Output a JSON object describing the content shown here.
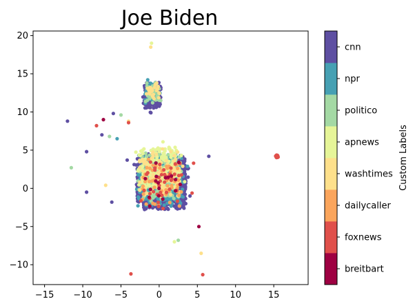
{
  "chart_data": {
    "type": "scatter",
    "title": "Joe Biden",
    "xlabel": "",
    "ylabel": "",
    "xlim": [
      -16.5,
      19.5
    ],
    "ylim": [
      -12.6,
      20.6
    ],
    "xticks": [
      -15,
      -10,
      -5,
      0,
      5,
      10,
      15
    ],
    "yticks": [
      -10,
      -5,
      0,
      5,
      10,
      15,
      20
    ],
    "grid": false,
    "colorbar": {
      "label": "Custom Labels",
      "categories": [
        "breitbart",
        "foxnews",
        "dailycaller",
        "washtimes",
        "apnews",
        "politico",
        "npr",
        "cnn"
      ],
      "colors": [
        "#9e0142",
        "#e0504b",
        "#fba55c",
        "#fee08b",
        "#e6f598",
        "#a4d9a4",
        "#46a0b3",
        "#5e4fa2"
      ]
    },
    "series": [
      {
        "category": "cnn",
        "clusters": [
          {
            "center": [
              0.3,
              0.8
            ],
            "spread": [
              3.4,
              3.6
            ],
            "count": 1500
          },
          {
            "center": [
              -0.9,
              12.2
            ],
            "spread": [
              1.2,
              1.7
            ],
            "count": 260
          }
        ],
        "outliers": [
          [
            -12,
            8.8
          ],
          [
            -9.5,
            4.8
          ],
          [
            -7.5,
            7
          ],
          [
            -6,
            9.8
          ],
          [
            6.5,
            4.2
          ],
          [
            -9.5,
            -0.5
          ],
          [
            -6.2,
            -1.8
          ]
        ]
      },
      {
        "category": "npr",
        "clusters": [
          {
            "center": [
              0.2,
              1.0
            ],
            "spread": [
              3.2,
              3.4
            ],
            "count": 420
          },
          {
            "center": [
              -0.9,
              12.5
            ],
            "spread": [
              1.0,
              1.4
            ],
            "count": 70
          }
        ],
        "outliers": [
          [
            -5.5,
            6.5
          ],
          [
            -1.5,
            14.2
          ]
        ]
      },
      {
        "category": "politico",
        "clusters": [
          {
            "center": [
              0.0,
              1.6
            ],
            "spread": [
              3.0,
              3.2
            ],
            "count": 300
          },
          {
            "center": [
              -0.8,
              12.6
            ],
            "spread": [
              1.1,
              1.5
            ],
            "count": 45
          }
        ],
        "outliers": [
          [
            -11.5,
            2.7
          ],
          [
            -6.5,
            6.8
          ],
          [
            2.5,
            -6.8
          ],
          [
            -5,
            9.6
          ]
        ]
      },
      {
        "category": "apnews",
        "clusters": [
          {
            "center": [
              0.0,
              2.6
            ],
            "spread": [
              3.0,
              2.8
            ],
            "count": 180
          }
        ],
        "outliers": [
          [
            -1.0,
            19
          ],
          [
            2,
            -7
          ]
        ]
      },
      {
        "category": "washtimes",
        "clusters": [
          {
            "center": [
              0.2,
              1.8
            ],
            "spread": [
              3.1,
              3.2
            ],
            "count": 120
          },
          {
            "center": [
              -0.9,
              12.8
            ],
            "spread": [
              1.0,
              1.5
            ],
            "count": 25
          }
        ],
        "outliers": [
          [
            -1.1,
            18.5
          ],
          [
            -7.0,
            0.4
          ],
          [
            5.5,
            -8.5
          ],
          [
            -4,
            8.8
          ]
        ]
      },
      {
        "category": "dailycaller",
        "clusters": [
          {
            "center": [
              0.4,
              0.7
            ],
            "spread": [
              3.2,
              3.3
            ],
            "count": 60
          }
        ],
        "outliers": []
      },
      {
        "category": "foxnews",
        "clusters": [
          {
            "center": [
              15.4,
              4.2
            ],
            "spread": [
              0.18,
              0.18
            ],
            "count": 45
          },
          {
            "center": [
              0.4,
              0.5
            ],
            "spread": [
              3.0,
              3.2
            ],
            "count": 40
          }
        ],
        "outliers": [
          [
            -3.7,
            -11.2
          ],
          [
            5.7,
            -11.3
          ],
          [
            -8.2,
            8.2
          ],
          [
            -4,
            8.6
          ],
          [
            4.5,
            3.3
          ]
        ]
      },
      {
        "category": "breitbart",
        "clusters": [
          {
            "center": [
              0.3,
              0.6
            ],
            "spread": [
              3.0,
              3.0
            ],
            "count": 18
          }
        ],
        "outliers": [
          [
            -7.3,
            9.0
          ],
          [
            5.2,
            -5
          ]
        ]
      }
    ]
  }
}
